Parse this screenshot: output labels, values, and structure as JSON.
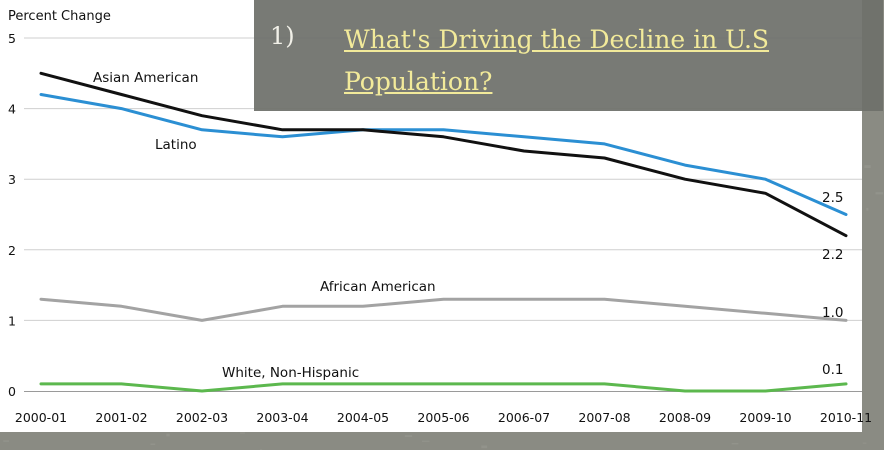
{
  "link_item": {
    "number": "1)",
    "line1": "What's Driving the Decline in U.S",
    "line2": "Population?"
  },
  "chart_data": {
    "type": "line",
    "title": "",
    "xlabel": "",
    "ylabel": "Percent Change",
    "ylim": [
      0,
      5
    ],
    "yticks": [
      "0",
      "1",
      "2",
      "3",
      "4",
      "5"
    ],
    "grid": true,
    "categories": [
      "2000-01",
      "2001-02",
      "2002-03",
      "2003-04",
      "2004-05",
      "2005-06",
      "2006-07",
      "2007-08",
      "2008-09",
      "2009-10",
      "2010-11"
    ],
    "series": [
      {
        "name": "Asian American",
        "color": "#111111",
        "values": [
          4.5,
          4.2,
          3.9,
          3.7,
          3.7,
          3.6,
          3.4,
          3.3,
          3.0,
          2.8,
          2.2
        ],
        "end_label": "2.2"
      },
      {
        "name": "Latino",
        "color": "#2b8fd3",
        "values": [
          4.2,
          4.0,
          3.7,
          3.6,
          3.7,
          3.7,
          3.6,
          3.5,
          3.2,
          3.0,
          2.5
        ],
        "end_label": "2.5"
      },
      {
        "name": "African American",
        "color": "#a3a3a3",
        "values": [
          1.3,
          1.2,
          1.0,
          1.2,
          1.2,
          1.3,
          1.3,
          1.3,
          1.2,
          1.1,
          1.0
        ],
        "end_label": "1.0"
      },
      {
        "name": "White, Non-Hispanic",
        "color": "#5cb84e",
        "values": [
          0.1,
          0.1,
          0.0,
          0.1,
          0.1,
          0.1,
          0.1,
          0.1,
          0.0,
          0.0,
          0.1
        ],
        "end_label": "0.1"
      }
    ]
  },
  "colors": {
    "background": "#8a8b83",
    "overlay": "#6e706a",
    "link": "#f2ea9a"
  }
}
